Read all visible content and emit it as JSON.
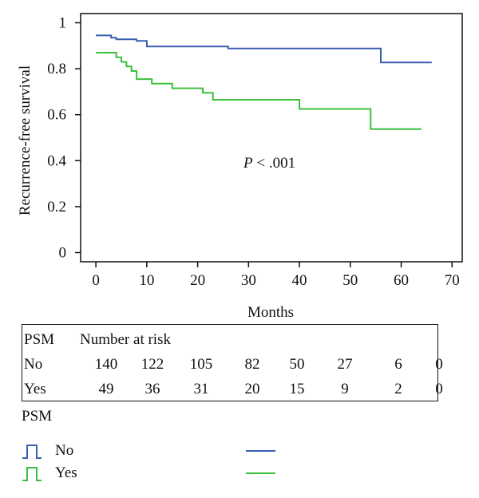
{
  "chart_data": {
    "type": "line",
    "step": true,
    "ylabel": "Recurrence-free survival",
    "xlabel": "Months",
    "annotation": {
      "italic": "P",
      "text": " < .001"
    },
    "xlim": [
      -3,
      72
    ],
    "ylim": [
      -0.04,
      1.04
    ],
    "xticks": [
      "0",
      "10",
      "20",
      "30",
      "40",
      "50",
      "60",
      "70"
    ],
    "yticks": [
      "0",
      "0.2",
      "0.4",
      "0.6",
      "0.8",
      "1"
    ],
    "series": [
      {
        "name": "No",
        "color": "#3a5fb0",
        "points": [
          [
            0,
            0.945
          ],
          [
            3,
            0.945
          ],
          [
            3,
            0.935
          ],
          [
            4,
            0.935
          ],
          [
            4,
            0.928
          ],
          [
            8,
            0.928
          ],
          [
            8,
            0.921
          ],
          [
            10,
            0.921
          ],
          [
            10,
            0.897
          ],
          [
            26,
            0.897
          ],
          [
            26,
            0.888
          ],
          [
            56,
            0.888
          ],
          [
            56,
            0.827
          ],
          [
            66,
            0.827
          ]
        ]
      },
      {
        "name": "Yes",
        "color": "#3cbf3c",
        "points": [
          [
            0,
            0.87
          ],
          [
            4,
            0.87
          ],
          [
            4,
            0.85
          ],
          [
            5,
            0.85
          ],
          [
            5,
            0.83
          ],
          [
            6,
            0.83
          ],
          [
            6,
            0.81
          ],
          [
            7,
            0.81
          ],
          [
            7,
            0.79
          ],
          [
            8,
            0.79
          ],
          [
            8,
            0.755
          ],
          [
            11,
            0.755
          ],
          [
            11,
            0.735
          ],
          [
            15,
            0.735
          ],
          [
            15,
            0.715
          ],
          [
            21,
            0.715
          ],
          [
            21,
            0.695
          ],
          [
            23,
            0.695
          ],
          [
            23,
            0.665
          ],
          [
            40,
            0.665
          ],
          [
            40,
            0.625
          ],
          [
            54,
            0.625
          ],
          [
            54,
            0.537
          ],
          [
            64,
            0.537
          ]
        ]
      }
    ]
  },
  "risk_table": {
    "header_label": "PSM",
    "header_title": "Number at risk",
    "rows": [
      {
        "label": "No",
        "values": [
          "140",
          "122",
          "105",
          "82",
          "50",
          "27",
          "6",
          "0"
        ]
      },
      {
        "label": "Yes",
        "values": [
          "49",
          "36",
          "31",
          "20",
          "15",
          "9",
          "2",
          "0"
        ]
      }
    ]
  },
  "legend": {
    "title": "PSM",
    "items": [
      {
        "label": "No",
        "color": "#3a5fb0"
      },
      {
        "label": "Yes",
        "color": "#3cbf3c"
      }
    ]
  }
}
